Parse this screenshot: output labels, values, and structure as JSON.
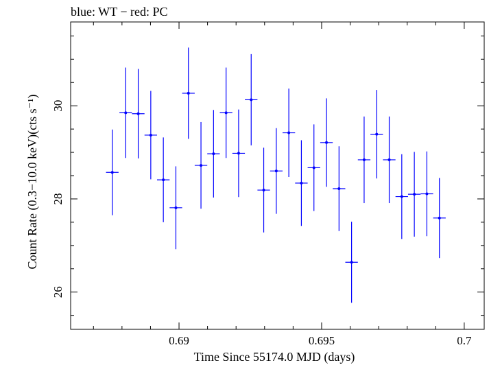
{
  "chart_data": {
    "type": "scatter",
    "title": "blue: WT − red: PC",
    "xlabel": "Time Since 55174.0 MJD (days)",
    "ylabel": "Count Rate (0.3−10.0 keV)(cts s⁻¹)",
    "xlim": [
      0.6862,
      0.7007
    ],
    "ylim": [
      25.2,
      31.8
    ],
    "xticks": [
      0.69,
      0.695,
      0.7
    ],
    "xtick_labels": [
      "0.69",
      "0.695",
      "0.7"
    ],
    "yticks": [
      26,
      28,
      30
    ],
    "ytick_labels": [
      "26",
      "28",
      "30"
    ],
    "grid": false,
    "series": [
      {
        "color": "#0000ff",
        "points": [
          {
            "x": 0.68766,
            "xerr": 0.00022,
            "y": 28.57,
            "yerr": 0.92
          },
          {
            "x": 0.68813,
            "xerr": 0.00022,
            "y": 29.85,
            "yerr": 0.97
          },
          {
            "x": 0.68857,
            "xerr": 0.00022,
            "y": 29.83,
            "yerr": 0.96
          },
          {
            "x": 0.68901,
            "xerr": 0.00022,
            "y": 29.37,
            "yerr": 0.95
          },
          {
            "x": 0.68945,
            "xerr": 0.00022,
            "y": 28.41,
            "yerr": 0.91
          },
          {
            "x": 0.68989,
            "xerr": 0.00022,
            "y": 27.81,
            "yerr": 0.89
          },
          {
            "x": 0.69033,
            "xerr": 0.00022,
            "y": 30.27,
            "yerr": 0.98
          },
          {
            "x": 0.69077,
            "xerr": 0.00022,
            "y": 28.72,
            "yerr": 0.93
          },
          {
            "x": 0.69121,
            "xerr": 0.00022,
            "y": 28.97,
            "yerr": 0.94
          },
          {
            "x": 0.69165,
            "xerr": 0.00022,
            "y": 29.85,
            "yerr": 0.97
          },
          {
            "x": 0.69209,
            "xerr": 0.00022,
            "y": 28.98,
            "yerr": 0.94
          },
          {
            "x": 0.69253,
            "xerr": 0.00022,
            "y": 30.13,
            "yerr": 0.98
          },
          {
            "x": 0.69297,
            "xerr": 0.00022,
            "y": 28.19,
            "yerr": 0.91
          },
          {
            "x": 0.69341,
            "xerr": 0.00022,
            "y": 28.6,
            "yerr": 0.92
          },
          {
            "x": 0.69385,
            "xerr": 0.00022,
            "y": 29.42,
            "yerr": 0.95
          },
          {
            "x": 0.69429,
            "xerr": 0.00022,
            "y": 28.34,
            "yerr": 0.92
          },
          {
            "x": 0.69473,
            "xerr": 0.00022,
            "y": 28.67,
            "yerr": 0.93
          },
          {
            "x": 0.69517,
            "xerr": 0.00022,
            "y": 29.21,
            "yerr": 0.95
          },
          {
            "x": 0.69561,
            "xerr": 0.00022,
            "y": 28.22,
            "yerr": 0.91
          },
          {
            "x": 0.69605,
            "xerr": 0.00022,
            "y": 26.64,
            "yerr": 0.87
          },
          {
            "x": 0.69649,
            "xerr": 0.00022,
            "y": 28.84,
            "yerr": 0.93
          },
          {
            "x": 0.69693,
            "xerr": 0.00022,
            "y": 29.39,
            "yerr": 0.95
          },
          {
            "x": 0.69737,
            "xerr": 0.00022,
            "y": 28.84,
            "yerr": 0.93
          },
          {
            "x": 0.69781,
            "xerr": 0.00022,
            "y": 28.05,
            "yerr": 0.91
          },
          {
            "x": 0.69825,
            "xerr": 0.00022,
            "y": 28.1,
            "yerr": 0.91
          },
          {
            "x": 0.69869,
            "xerr": 0.00022,
            "y": 28.11,
            "yerr": 0.91
          },
          {
            "x": 0.69913,
            "xerr": 0.00022,
            "y": 27.59,
            "yerr": 0.86
          }
        ]
      }
    ]
  }
}
